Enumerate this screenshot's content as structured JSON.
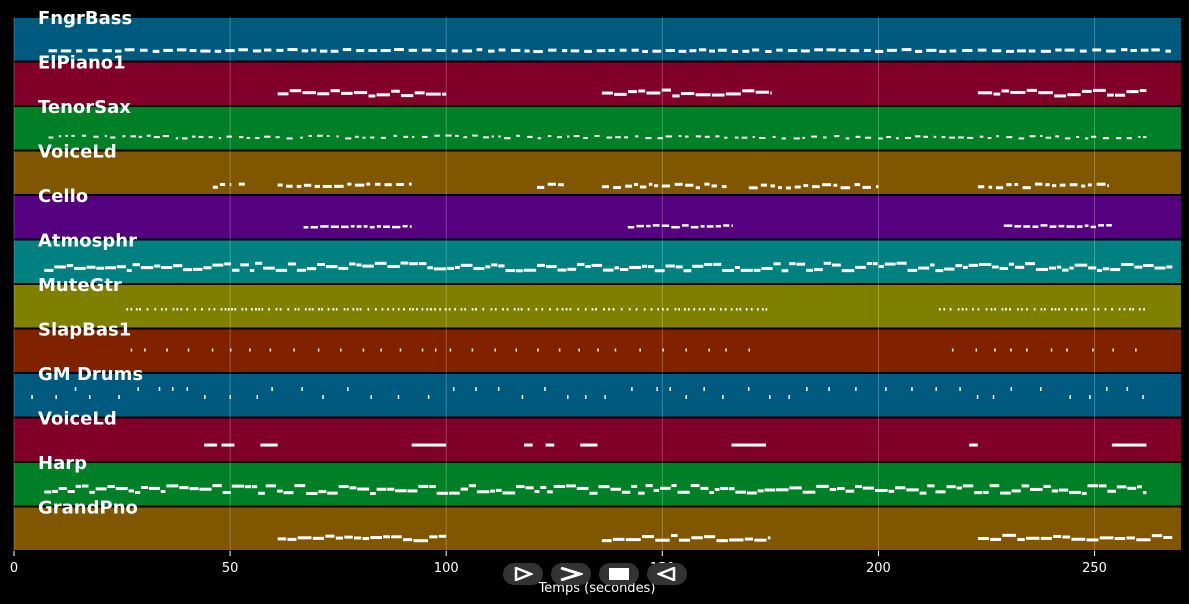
{
  "chart_data": {
    "type": "piano-roll",
    "title": "",
    "xlabel": "Temps (secondes)",
    "xlim": [
      0,
      270
    ],
    "xticks": [
      0,
      50,
      100,
      150,
      200,
      250
    ],
    "tracks": [
      {
        "name": "FngrBass",
        "color": "#005a80",
        "pattern": "bass",
        "segments": [
          [
            8,
            268
          ]
        ]
      },
      {
        "name": "ElPiano1",
        "color": "#80002a",
        "pattern": "chords",
        "segments": [
          [
            61,
            100
          ],
          [
            136,
            175
          ],
          [
            223,
            262
          ]
        ]
      },
      {
        "name": "TenorSax",
        "color": "#008026",
        "pattern": "sparse",
        "segments": [
          [
            8,
            262
          ]
        ]
      },
      {
        "name": "VoiceLd",
        "color": "#805600",
        "pattern": "melody",
        "segments": [
          [
            46,
            50
          ],
          [
            52,
            54
          ],
          [
            61,
            92
          ],
          [
            121,
            128
          ],
          [
            136,
            165
          ],
          [
            170,
            200
          ],
          [
            223,
            253
          ]
        ]
      },
      {
        "name": "Cello",
        "color": "#54007f",
        "pattern": "phrase",
        "segments": [
          [
            67,
            92
          ],
          [
            142,
            166
          ],
          [
            229,
            254
          ]
        ]
      },
      {
        "name": "Atmosphr",
        "color": "#008080",
        "pattern": "dense",
        "segments": [
          [
            7,
            268
          ]
        ]
      },
      {
        "name": "MuteGtr",
        "color": "#808000",
        "pattern": "dots",
        "segments": [
          [
            26,
            175
          ],
          [
            214,
            262
          ]
        ]
      },
      {
        "name": "SlapBas1",
        "color": "#802200",
        "pattern": "ticks",
        "segments": [
          [
            27,
            175
          ],
          [
            217,
            262
          ]
        ]
      },
      {
        "name": "GM Drums",
        "color": "#005a80",
        "pattern": "drums",
        "segments": [
          [
            4,
            262
          ]
        ]
      },
      {
        "name": "VoiceLd",
        "color": "#80002a",
        "pattern": "notes",
        "segments": [
          [
            44,
            47
          ],
          [
            48,
            51
          ],
          [
            57,
            61
          ],
          [
            92,
            100
          ],
          [
            118,
            120
          ],
          [
            123,
            125
          ],
          [
            131,
            135
          ],
          [
            166,
            174
          ],
          [
            221,
            223
          ],
          [
            254,
            262
          ]
        ]
      },
      {
        "name": "Harp",
        "color": "#008026",
        "pattern": "dense",
        "segments": [
          [
            7,
            262
          ]
        ]
      },
      {
        "name": "GrandPno",
        "color": "#805600",
        "pattern": "chords",
        "segments": [
          [
            61,
            100
          ],
          [
            136,
            175
          ],
          [
            223,
            268
          ]
        ]
      }
    ]
  },
  "controls": [
    {
      "name": "play-button",
      "icon": "play-icon"
    },
    {
      "name": "forward-button",
      "icon": "forward-icon"
    },
    {
      "name": "stop-button",
      "icon": "stop-icon"
    },
    {
      "name": "rewind-button",
      "icon": "rewind-icon"
    }
  ]
}
